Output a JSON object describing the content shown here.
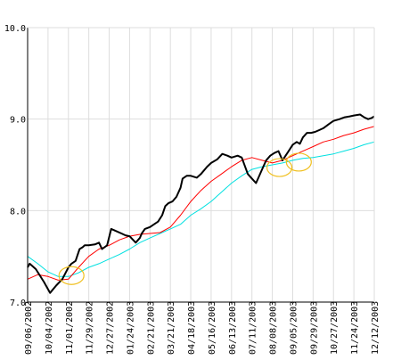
{
  "chart_data": {
    "type": "line",
    "ylim": [
      7.0,
      10.0
    ],
    "y_ticks": [
      "7.0",
      "8.0",
      "9.0",
      "10.0"
    ],
    "grid": true,
    "colors": {
      "price": "#000000",
      "fast_ma": "#ff0000",
      "slow_ma": "#00e0e0",
      "highlight": "#f0c020",
      "grid": "#dddddd",
      "axis": "#000000"
    },
    "x_labels": [
      "09/06/2002",
      "10/04/2002",
      "11/01/2002",
      "11/29/2002",
      "12/27/2002",
      "01/24/2003",
      "02/21/2003",
      "03/21/2003",
      "04/18/2003",
      "05/16/2003",
      "06/13/2003",
      "07/11/2003",
      "08/08/2003",
      "09/05/2003",
      "09/29/2003",
      "10/27/2003",
      "11/24/2003",
      "12/12/2003"
    ],
    "series": [
      {
        "key": "price",
        "x": [
          0,
          0.1,
          0.4,
          0.8,
          1.1,
          1.4,
          1.7,
          2.0,
          2.15,
          2.35,
          2.55,
          2.7,
          2.8,
          3.0,
          3.3,
          3.5,
          3.65,
          3.9,
          4.1,
          4.3,
          4.6,
          4.8,
          5.0,
          5.3,
          5.5,
          5.6,
          5.75,
          6.0,
          6.2,
          6.4,
          6.6,
          6.75,
          6.9,
          7.1,
          7.3,
          7.5,
          7.6,
          7.8,
          8.0,
          8.3,
          8.5,
          8.8,
          9.0,
          9.3,
          9.55,
          9.8,
          10.0,
          10.3,
          10.5,
          10.8,
          11.0,
          11.2,
          11.3,
          11.5,
          11.7,
          11.9,
          12.1,
          12.3,
          12.5,
          12.8,
          13.0,
          13.2,
          13.35,
          13.5,
          13.7,
          13.9,
          14.1,
          14.3,
          14.5,
          14.8,
          15.0,
          15.3,
          15.55,
          15.8,
          16.0,
          16.3,
          16.5,
          16.7,
          16.85,
          17.0
        ],
        "y": [
          7.38,
          7.42,
          7.36,
          7.22,
          7.1,
          7.18,
          7.25,
          7.38,
          7.42,
          7.45,
          7.58,
          7.6,
          7.62,
          7.62,
          7.63,
          7.65,
          7.58,
          7.62,
          7.8,
          7.78,
          7.75,
          7.73,
          7.72,
          7.65,
          7.7,
          7.75,
          7.8,
          7.82,
          7.85,
          7.88,
          7.95,
          8.05,
          8.08,
          8.1,
          8.15,
          8.25,
          8.35,
          8.38,
          8.38,
          8.36,
          8.4,
          8.48,
          8.52,
          8.56,
          8.62,
          8.6,
          8.58,
          8.6,
          8.58,
          8.4,
          8.35,
          8.3,
          8.35,
          8.45,
          8.55,
          8.6,
          8.63,
          8.65,
          8.55,
          8.65,
          8.72,
          8.75,
          8.73,
          8.8,
          8.85,
          8.85,
          8.86,
          8.88,
          8.9,
          8.95,
          8.98,
          9.0,
          9.02,
          9.03,
          9.04,
          9.05,
          9.02,
          9.0,
          9.01,
          9.03
        ]
      },
      {
        "key": "fast_ma",
        "x": [
          0,
          0.5,
          1.0,
          1.5,
          2.0,
          2.5,
          3.0,
          3.5,
          4.0,
          4.5,
          5.0,
          5.5,
          6.0,
          6.5,
          7.0,
          7.5,
          8.0,
          8.5,
          9.0,
          9.5,
          10.0,
          10.5,
          11.0,
          11.5,
          12.0,
          12.5,
          13.0,
          13.5,
          14.0,
          14.5,
          15.0,
          15.5,
          16.0,
          16.5,
          17.0
        ],
        "y": [
          7.25,
          7.3,
          7.28,
          7.24,
          7.25,
          7.38,
          7.5,
          7.58,
          7.62,
          7.68,
          7.72,
          7.74,
          7.75,
          7.76,
          7.82,
          7.95,
          8.1,
          8.22,
          8.32,
          8.4,
          8.48,
          8.55,
          8.58,
          8.55,
          8.52,
          8.55,
          8.6,
          8.65,
          8.7,
          8.75,
          8.78,
          8.82,
          8.85,
          8.89,
          8.92
        ]
      },
      {
        "key": "slow_ma",
        "x": [
          0,
          0.5,
          1.0,
          1.5,
          2.0,
          2.5,
          3.0,
          3.5,
          4.0,
          4.5,
          5.0,
          5.5,
          6.0,
          6.5,
          7.0,
          7.5,
          8.0,
          8.5,
          9.0,
          9.5,
          10.0,
          10.5,
          11.0,
          11.5,
          12.0,
          12.5,
          13.0,
          13.5,
          14.0,
          14.5,
          15.0,
          15.5,
          16.0,
          16.5,
          17.0
        ],
        "y": [
          7.5,
          7.42,
          7.33,
          7.28,
          7.28,
          7.32,
          7.38,
          7.42,
          7.47,
          7.52,
          7.58,
          7.65,
          7.7,
          7.75,
          7.8,
          7.85,
          7.95,
          8.02,
          8.1,
          8.2,
          8.3,
          8.38,
          8.45,
          8.48,
          8.5,
          8.52,
          8.55,
          8.57,
          8.58,
          8.6,
          8.62,
          8.65,
          8.68,
          8.72,
          8.75
        ]
      }
    ],
    "highlights": [
      {
        "x": 2.15,
        "y": 7.29
      },
      {
        "x": 12.35,
        "y": 8.47
      },
      {
        "x": 13.3,
        "y": 8.53
      }
    ]
  }
}
